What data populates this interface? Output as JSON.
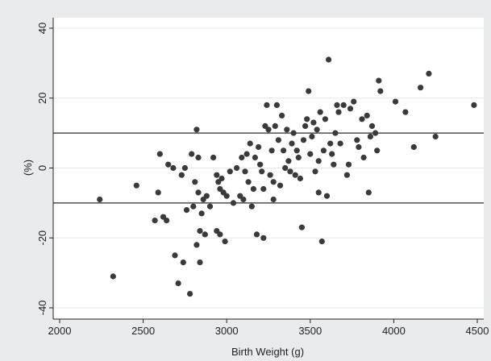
{
  "chart_data": {
    "type": "scatter",
    "title": "",
    "xlabel": "Birth Weight (g)",
    "ylabel": "(%)",
    "xlim": [
      2000,
      4500
    ],
    "ylim": [
      -40,
      40
    ],
    "xticks": [
      2000,
      2500,
      3000,
      3500,
      4000,
      4500
    ],
    "yticks": [
      -40,
      -20,
      0,
      20,
      40
    ],
    "reference_lines": [
      10,
      -10
    ],
    "grid": "horizontal",
    "legend": "none",
    "marker_color": "#3a3a3a",
    "background_color": "#e9ebec",
    "plot_background_color": "#ffffff",
    "grid_color": "#e3e8ea",
    "points": [
      [
        2240,
        -9
      ],
      [
        2320,
        -31
      ],
      [
        2460,
        -5
      ],
      [
        2570,
        -15
      ],
      [
        2590,
        -7
      ],
      [
        2600,
        4
      ],
      [
        2620,
        -14
      ],
      [
        2640,
        -15
      ],
      [
        2650,
        1
      ],
      [
        2680,
        0
      ],
      [
        2690,
        -25
      ],
      [
        2710,
        -33
      ],
      [
        2730,
        -2
      ],
      [
        2740,
        -27
      ],
      [
        2750,
        0
      ],
      [
        2760,
        -12
      ],
      [
        2780,
        -36
      ],
      [
        2790,
        4
      ],
      [
        2800,
        -11
      ],
      [
        2810,
        -4
      ],
      [
        2820,
        -22
      ],
      [
        2820,
        11
      ],
      [
        2830,
        -7
      ],
      [
        2830,
        3
      ],
      [
        2840,
        -18
      ],
      [
        2840,
        -27
      ],
      [
        2850,
        -13
      ],
      [
        2860,
        -9
      ],
      [
        2870,
        -19
      ],
      [
        2880,
        -8
      ],
      [
        2900,
        -11
      ],
      [
        2920,
        3
      ],
      [
        2940,
        -2
      ],
      [
        2940,
        -18
      ],
      [
        2950,
        -4
      ],
      [
        2960,
        -6
      ],
      [
        2960,
        -19
      ],
      [
        2970,
        -3
      ],
      [
        2980,
        -7
      ],
      [
        2990,
        -21
      ],
      [
        3000,
        -8
      ],
      [
        3020,
        -1
      ],
      [
        3040,
        -10
      ],
      [
        3060,
        0
      ],
      [
        3080,
        -8
      ],
      [
        3090,
        3
      ],
      [
        3100,
        -9
      ],
      [
        3110,
        -1
      ],
      [
        3120,
        4
      ],
      [
        3130,
        -4
      ],
      [
        3140,
        7
      ],
      [
        3150,
        -11
      ],
      [
        3160,
        -6
      ],
      [
        3170,
        3
      ],
      [
        3180,
        -19
      ],
      [
        3190,
        6
      ],
      [
        3200,
        1
      ],
      [
        3210,
        -1
      ],
      [
        3220,
        -20
      ],
      [
        3220,
        -6
      ],
      [
        3230,
        12
      ],
      [
        3240,
        18
      ],
      [
        3250,
        11
      ],
      [
        3260,
        -2
      ],
      [
        3270,
        5
      ],
      [
        3280,
        -4
      ],
      [
        3280,
        -9
      ],
      [
        3290,
        12
      ],
      [
        3300,
        18
      ],
      [
        3310,
        8
      ],
      [
        3320,
        -5
      ],
      [
        3330,
        15
      ],
      [
        3340,
        5
      ],
      [
        3350,
        0
      ],
      [
        3360,
        11
      ],
      [
        3370,
        2
      ],
      [
        3380,
        -1
      ],
      [
        3390,
        7
      ],
      [
        3400,
        10
      ],
      [
        3410,
        -2
      ],
      [
        3420,
        5
      ],
      [
        3430,
        3
      ],
      [
        3440,
        -3
      ],
      [
        3450,
        -17
      ],
      [
        3460,
        8
      ],
      [
        3470,
        12
      ],
      [
        3480,
        14
      ],
      [
        3490,
        22
      ],
      [
        3500,
        4
      ],
      [
        3510,
        9
      ],
      [
        3520,
        13
      ],
      [
        3530,
        -1
      ],
      [
        3540,
        11
      ],
      [
        3550,
        2
      ],
      [
        3550,
        -7
      ],
      [
        3560,
        16
      ],
      [
        3570,
        -21
      ],
      [
        3580,
        5
      ],
      [
        3590,
        14
      ],
      [
        3600,
        -8
      ],
      [
        3610,
        31
      ],
      [
        3620,
        7
      ],
      [
        3630,
        4
      ],
      [
        3640,
        1
      ],
      [
        3650,
        10
      ],
      [
        3660,
        18
      ],
      [
        3670,
        16
      ],
      [
        3680,
        7
      ],
      [
        3700,
        18
      ],
      [
        3720,
        -2
      ],
      [
        3730,
        1
      ],
      [
        3740,
        17
      ],
      [
        3760,
        19
      ],
      [
        3780,
        8
      ],
      [
        3790,
        6
      ],
      [
        3810,
        14
      ],
      [
        3820,
        3
      ],
      [
        3840,
        15
      ],
      [
        3850,
        -7
      ],
      [
        3860,
        9
      ],
      [
        3870,
        12
      ],
      [
        3890,
        10
      ],
      [
        3900,
        5
      ],
      [
        3910,
        25
      ],
      [
        3920,
        22
      ],
      [
        4010,
        19
      ],
      [
        4070,
        16
      ],
      [
        4120,
        6
      ],
      [
        4160,
        23
      ],
      [
        4210,
        27
      ],
      [
        4250,
        9
      ],
      [
        4480,
        18
      ]
    ]
  }
}
